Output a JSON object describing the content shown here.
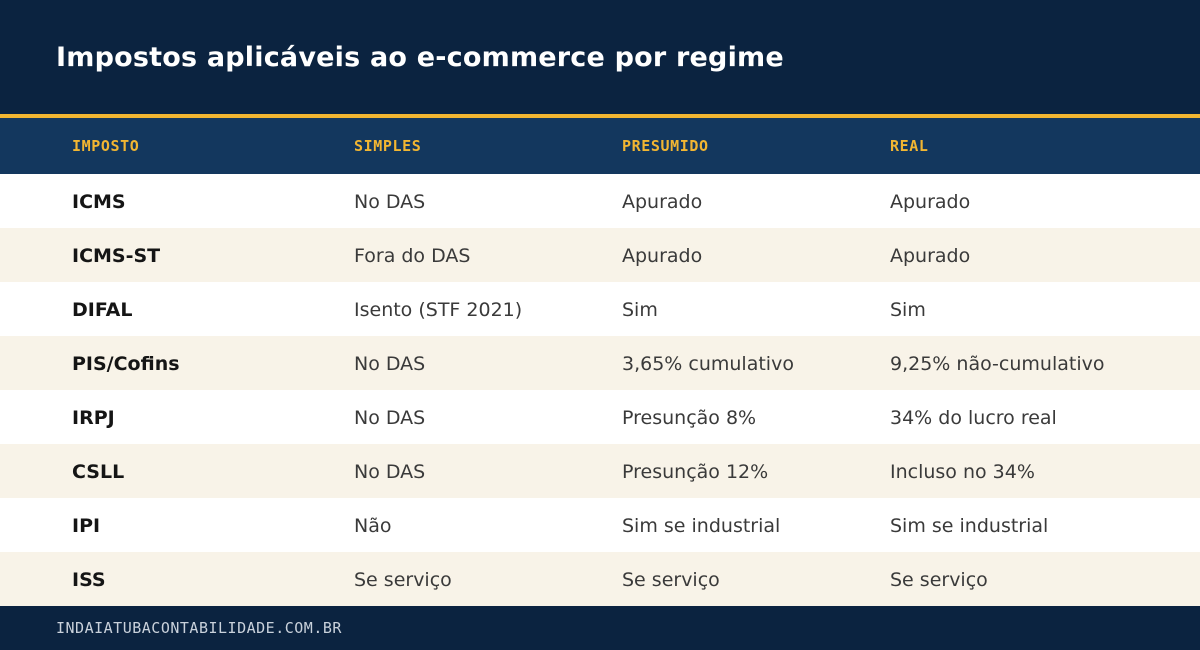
{
  "header": {
    "title": "Impostos aplicáveis ao e-commerce por regime"
  },
  "table": {
    "columns": [
      "IMPOSTO",
      "SIMPLES",
      "PRESUMIDO",
      "REAL"
    ],
    "rows": [
      [
        "ICMS",
        "No DAS",
        "Apurado",
        "Apurado"
      ],
      [
        "ICMS-ST",
        "Fora do DAS",
        "Apurado",
        "Apurado"
      ],
      [
        "DIFAL",
        "Isento (STF 2021)",
        "Sim",
        "Sim"
      ],
      [
        "PIS/Cofins",
        "No DAS",
        "3,65% cumulativo",
        "9,25% não-cumulativo"
      ],
      [
        "IRPJ",
        "No DAS",
        "Presunção 8%",
        "34% do lucro real"
      ],
      [
        "CSLL",
        "No DAS",
        "Presunção 12%",
        "Incluso no 34%"
      ],
      [
        "IPI",
        "Não",
        "Sim se industrial",
        "Sim se industrial"
      ],
      [
        "ISS",
        "Se serviço",
        "Se serviço",
        "Se serviço"
      ]
    ]
  },
  "footer": {
    "site": "INDAIATUBACONTABILIDADE.COM.BR"
  },
  "colors": {
    "navy": "#0b2340",
    "header_row": "#13375e",
    "accent": "#f2b632",
    "alt_row": "#f8f3e8"
  }
}
